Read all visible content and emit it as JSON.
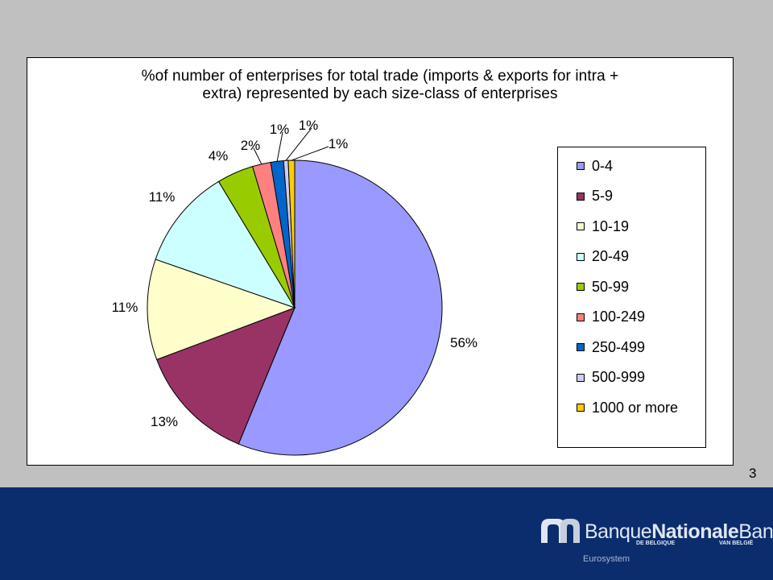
{
  "slide": {
    "number": "3",
    "logo": {
      "name_part1": "Banque",
      "name_part2": "Nationale",
      "name_part3": "Bank",
      "sub_left": "DE BELGIQUE",
      "sub_right": "VAN BELGIË",
      "system": "Eurosystem"
    }
  },
  "chart_data": {
    "type": "pie",
    "title_lines": [
      "%of number of enterprises for total trade (imports & exports for intra +",
      "extra) represented by each size-class of enterprises"
    ],
    "categories": [
      "0-4",
      "5-9",
      "10-19",
      "20-49",
      "50-99",
      "100-249",
      "250-499",
      "500-999",
      "1000 or more"
    ],
    "values": [
      56,
      13,
      11,
      11,
      4,
      2,
      1.4,
      0.5,
      0.7
    ],
    "data_labels": [
      "56%",
      "13%",
      "11%",
      "11%",
      "4%",
      "2%",
      "1%",
      "1%",
      "1%"
    ],
    "colors": [
      "#9999ff",
      "#993366",
      "#ffffcc",
      "#ccffff",
      "#99cc00",
      "#ff8080",
      "#0066cc",
      "#ccccff",
      "#ffcc00"
    ],
    "legend_placement": "right"
  }
}
